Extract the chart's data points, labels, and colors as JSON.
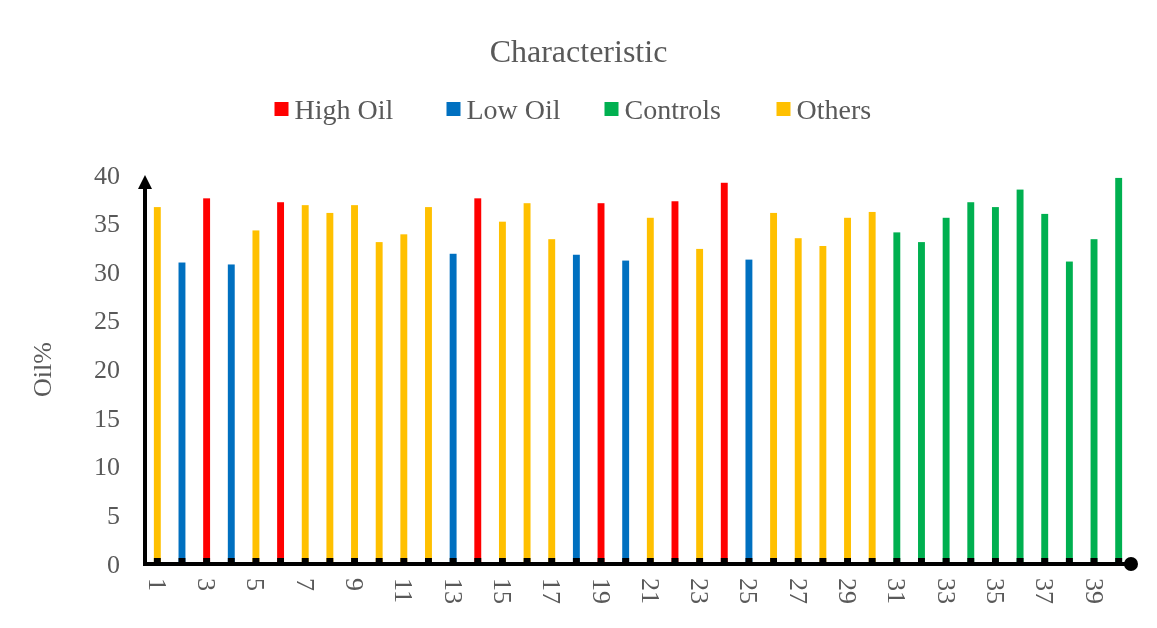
{
  "chart_data": {
    "type": "bar",
    "title": "Characteristic",
    "ylabel": "Oil%",
    "categories": [
      "1",
      null,
      "3",
      null,
      "5",
      null,
      "7",
      null,
      "9",
      null,
      "11",
      null,
      "13",
      null,
      "15",
      null,
      "17",
      null,
      "19",
      null,
      "21",
      null,
      "23",
      null,
      "25",
      null,
      "27",
      null,
      "29",
      null,
      "31",
      null,
      "33",
      null,
      "35",
      null,
      "37",
      null,
      "39",
      null
    ],
    "ylim": [
      0,
      40
    ],
    "yticks": [
      0,
      5,
      10,
      15,
      20,
      25,
      30,
      35,
      40
    ],
    "grid": false,
    "legend": "top",
    "series": [
      {
        "name": "High Oil",
        "color": "#ff0000",
        "values": [
          null,
          null,
          37.6,
          null,
          null,
          37.2,
          null,
          null,
          null,
          null,
          null,
          null,
          null,
          37.6,
          null,
          null,
          null,
          null,
          37.1,
          null,
          null,
          37.3,
          null,
          39.2,
          null,
          null,
          null,
          null,
          null,
          null,
          null,
          null,
          null,
          null,
          null,
          null,
          null,
          null,
          null,
          null
        ]
      },
      {
        "name": "Low Oil",
        "color": "#0070c0",
        "values": [
          null,
          31.0,
          null,
          30.8,
          null,
          null,
          null,
          null,
          null,
          null,
          null,
          null,
          31.9,
          null,
          null,
          null,
          null,
          31.8,
          null,
          31.2,
          null,
          null,
          null,
          null,
          31.3,
          null,
          null,
          null,
          null,
          null,
          null,
          null,
          null,
          null,
          null,
          null,
          null,
          null,
          null,
          null
        ]
      },
      {
        "name": "Controls",
        "color": "#00b050",
        "values": [
          null,
          null,
          null,
          null,
          null,
          null,
          null,
          null,
          null,
          null,
          null,
          null,
          null,
          null,
          null,
          null,
          null,
          null,
          null,
          null,
          null,
          null,
          null,
          null,
          null,
          null,
          null,
          null,
          null,
          null,
          34.1,
          33.1,
          35.6,
          37.2,
          36.7,
          38.5,
          36.0,
          31.1,
          33.4,
          39.7
        ]
      },
      {
        "name": "Others",
        "color": "#ffc000",
        "values": [
          36.7,
          null,
          null,
          null,
          34.3,
          null,
          36.9,
          36.1,
          36.9,
          33.1,
          33.9,
          36.7,
          null,
          null,
          35.2,
          37.1,
          33.4,
          null,
          null,
          null,
          35.6,
          null,
          32.4,
          null,
          null,
          36.1,
          33.5,
          32.7,
          35.6,
          36.2,
          null,
          null,
          null,
          null,
          null,
          null,
          null,
          null,
          null,
          null
        ]
      }
    ]
  }
}
